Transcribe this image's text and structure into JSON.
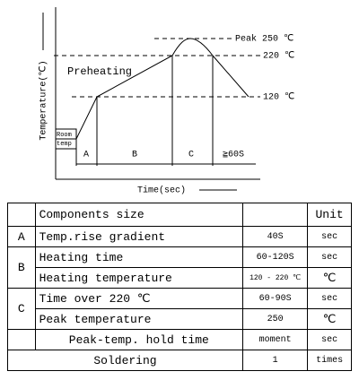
{
  "diagram": {
    "y_axis_label": "Temperature(℃)",
    "x_axis_label": "Time(sec)",
    "peak_label": "Peak 250 ℃",
    "level_220_label": "220 ℃",
    "level_120_label": "120 ℃",
    "preheating_label": "Preheating",
    "room_label": [
      "Room",
      "temp"
    ],
    "segments": [
      "A",
      "B",
      "C",
      "≧60S"
    ]
  },
  "table": {
    "header": [
      "Components size",
      "Unit"
    ],
    "rows": [
      {
        "group": "A",
        "item": "Temp.rise gradient",
        "value": "40S",
        "unit": "sec"
      },
      {
        "group": "B",
        "item": "Heating time",
        "value": "60-120S",
        "unit": "sec"
      },
      {
        "item": "Heating temperature",
        "value": "120 - 220 ℃",
        "unit": "℃"
      },
      {
        "group": "C",
        "item": "Time over 220 ℃",
        "value": "60-90S",
        "unit": "sec"
      },
      {
        "item": "Peak temperature",
        "value": "250",
        "unit": "℃"
      },
      {
        "item": "Peak-temp. hold time",
        "value": "moment",
        "unit": "sec"
      },
      {
        "item": "Soldering",
        "value": "1",
        "unit": "times"
      }
    ]
  }
}
